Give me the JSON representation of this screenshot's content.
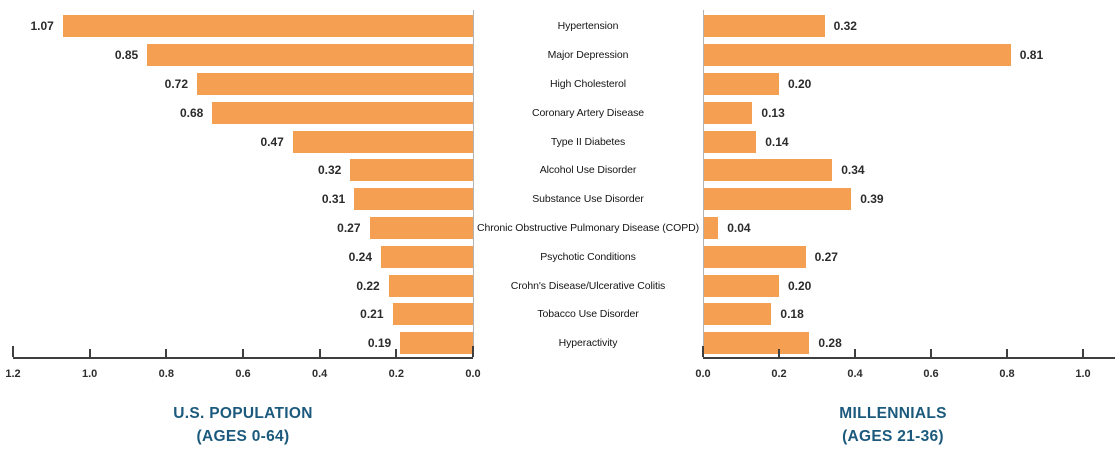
{
  "chart_data": {
    "type": "bar",
    "variant": "butterfly",
    "grid": false,
    "legend": "none",
    "bar_color": "#F59F53",
    "title_color": "#1C5A7D",
    "categories": [
      "Hypertension",
      "Major Depression",
      "High Cholesterol",
      "Coronary Artery Disease",
      "Type II Diabetes",
      "Alcohol Use Disorder",
      "Substance Use Disorder",
      "Chronic Obstructive Pulmonary Disease (COPD)",
      "Psychotic Conditions",
      "Crohn's Disease/Ulcerative Colitis",
      "Tobacco Use Disorder",
      "Hyperactivity"
    ],
    "series": [
      {
        "name": "U.S. POPULATION",
        "subtitle": "(AGES 0-64)",
        "side": "left",
        "values": [
          1.07,
          0.85,
          0.72,
          0.68,
          0.47,
          0.32,
          0.31,
          0.27,
          0.24,
          0.22,
          0.21,
          0.19
        ],
        "axis_ticks": [
          1.2,
          1.0,
          0.8,
          0.6,
          0.4,
          0.2,
          0.0
        ],
        "xlim": [
          0,
          1.2
        ],
        "axis_direction": "reversed"
      },
      {
        "name": "MILLENNIALS",
        "subtitle": "(AGES 21-36)",
        "side": "right",
        "values": [
          0.32,
          0.81,
          0.2,
          0.13,
          0.14,
          0.34,
          0.39,
          0.04,
          0.27,
          0.2,
          0.18,
          0.28
        ],
        "axis_ticks": [
          0.0,
          0.2,
          0.4,
          0.6,
          0.8,
          1.0
        ],
        "xlim": [
          0,
          1.1
        ],
        "axis_direction": "normal"
      }
    ]
  }
}
